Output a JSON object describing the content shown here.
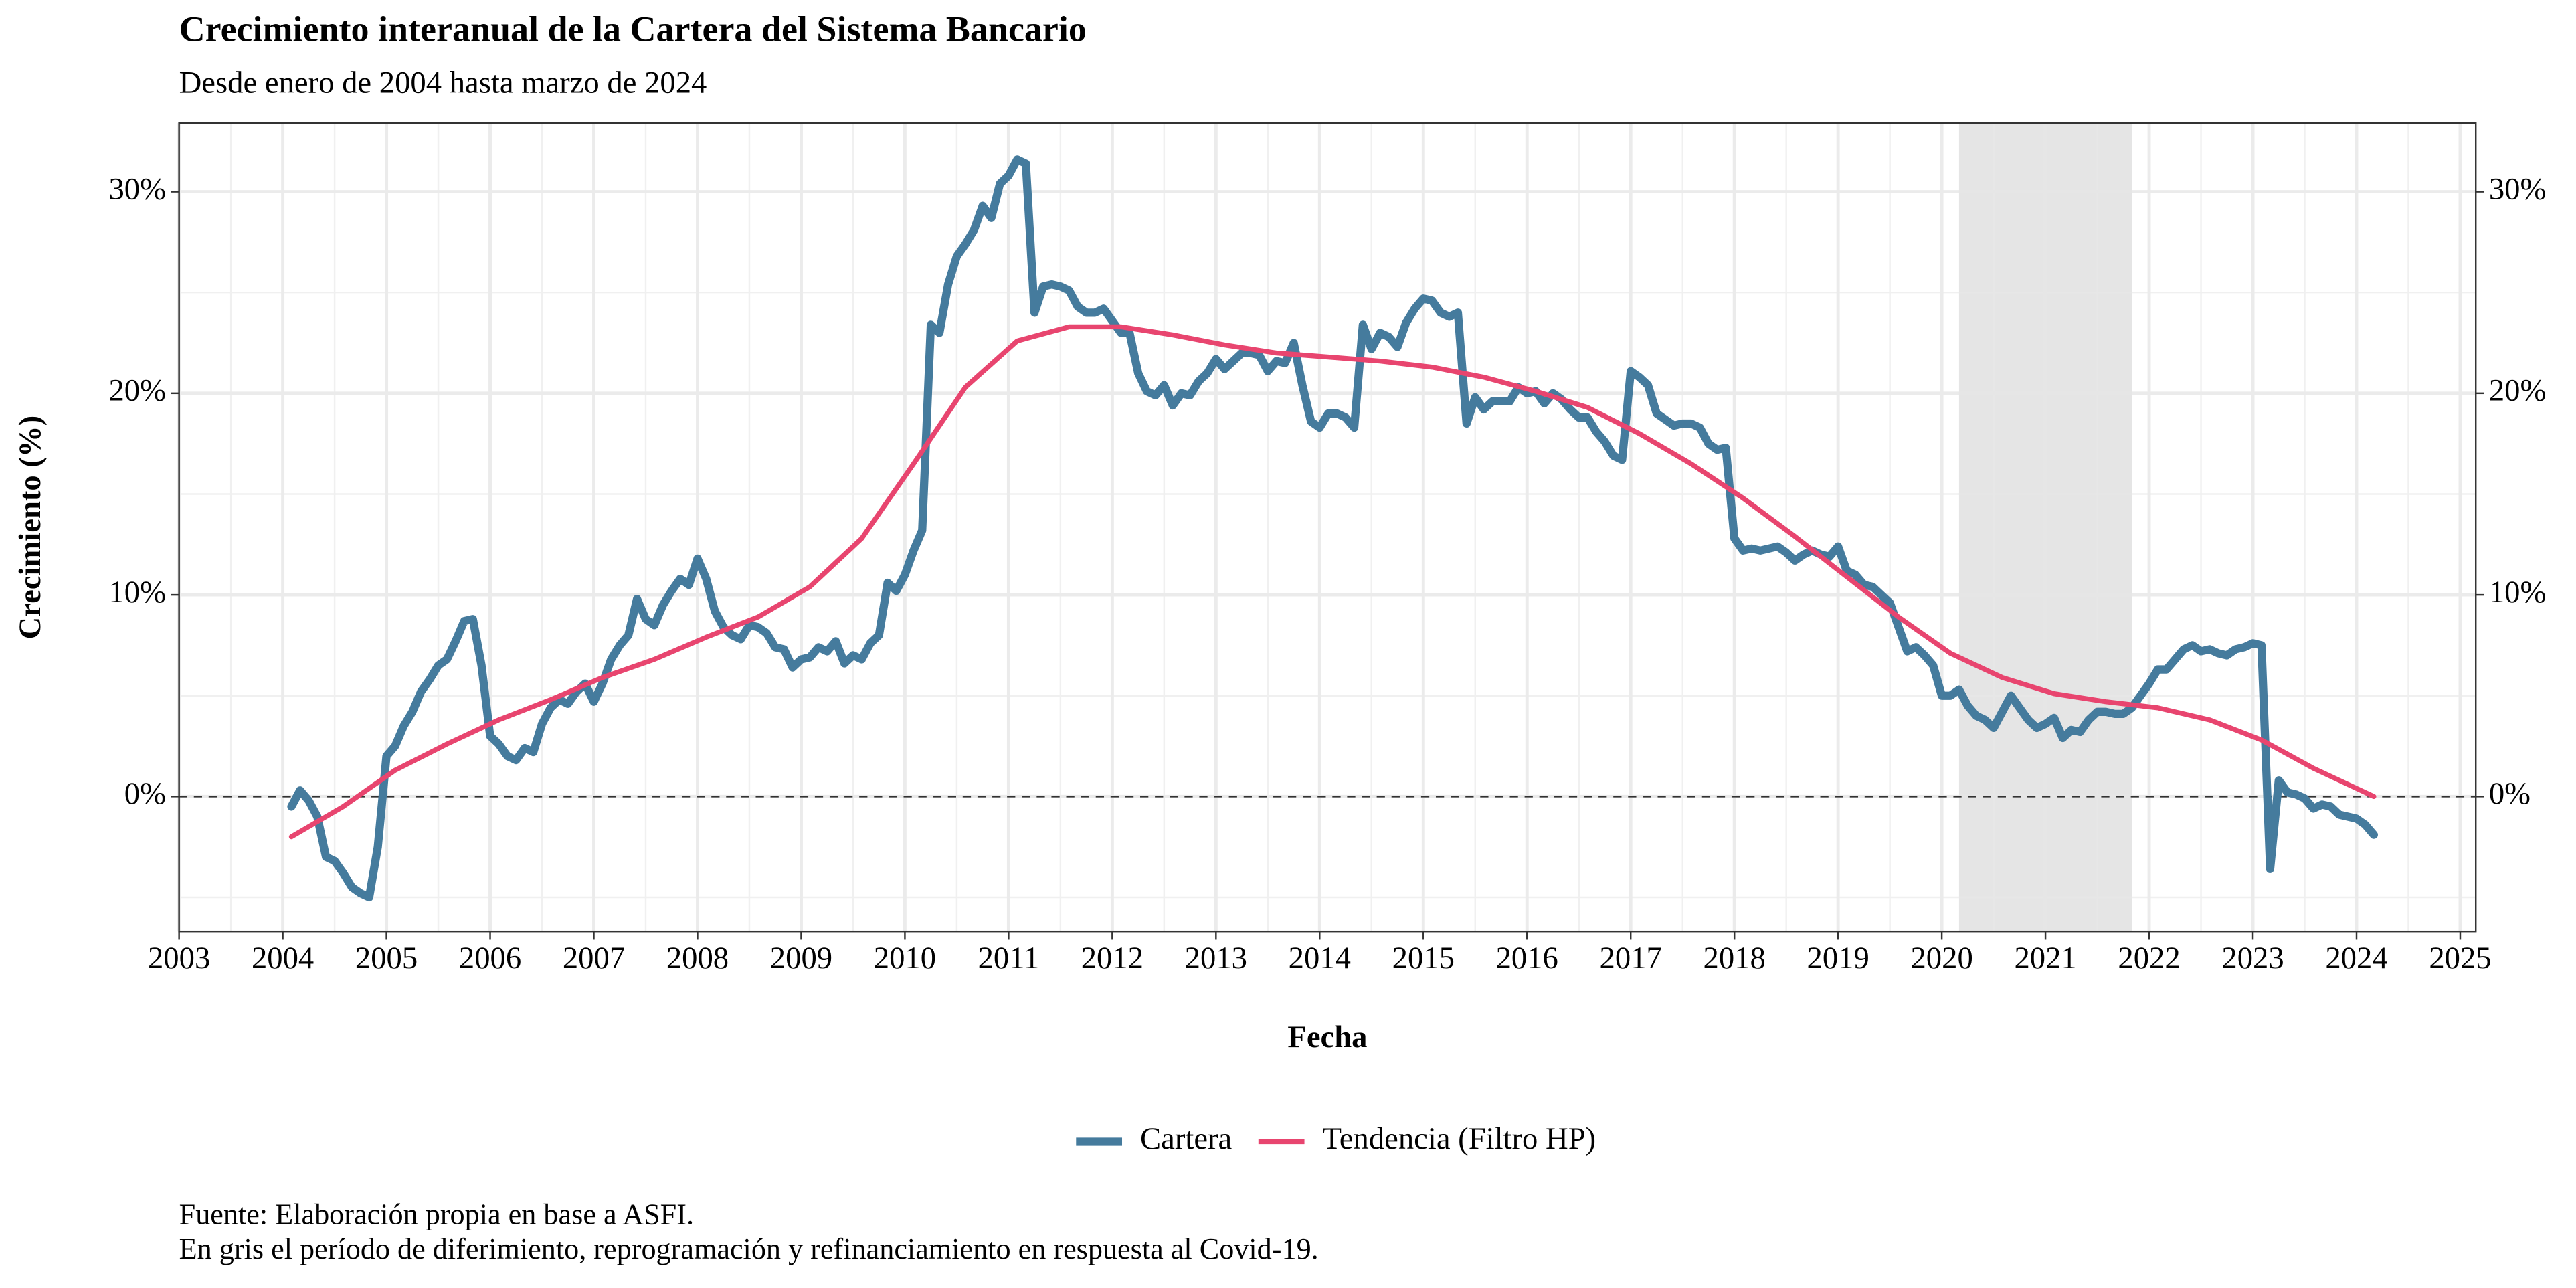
{
  "chart_data": {
    "type": "line",
    "title": "Crecimiento interanual de la Cartera del Sistema Bancario",
    "subtitle": "Desde enero de 2004 hasta marzo de 2024",
    "xlabel": "Fecha",
    "ylabel": "Crecimiento (%)",
    "notes": [
      "Fuente: Elaboración propia en base a ASFI.",
      "En gris el período de diferimiento, reprogramación y refinanciamiento en respuesta al Covid-19."
    ],
    "xlim": [
      2003,
      2025.15
    ],
    "xticks": [
      2003,
      2004,
      2005,
      2006,
      2007,
      2008,
      2009,
      2010,
      2011,
      2012,
      2013,
      2014,
      2015,
      2016,
      2017,
      2018,
      2019,
      2020,
      2021,
      2022,
      2023,
      2024,
      2025
    ],
    "ylim": [
      -6.7,
      33.4
    ],
    "yticks": [
      {
        "value": 0,
        "label": "0%"
      },
      {
        "value": 10,
        "label": "10%"
      },
      {
        "value": 20,
        "label": "20%"
      },
      {
        "value": 30,
        "label": "30%"
      }
    ],
    "y_minor_grid": [
      -5,
      5,
      15,
      25
    ],
    "grid": true,
    "secondary_axis": true,
    "reference_line": 0,
    "highlight": {
      "start": "2020-03",
      "end": "2021-11",
      "color": "#e5e5e5"
    },
    "legend": "bottom",
    "x": [
      "2004-02",
      "2004-03",
      "2004-04",
      "2004-05",
      "2004-06",
      "2004-07",
      "2004-08",
      "2004-09",
      "2004-10",
      "2004-11",
      "2004-12",
      "2005-01",
      "2005-02",
      "2005-03",
      "2005-04",
      "2005-05",
      "2005-06",
      "2005-07",
      "2005-08",
      "2005-09",
      "2005-10",
      "2005-11",
      "2005-12",
      "2006-01",
      "2006-02",
      "2006-03",
      "2006-04",
      "2006-05",
      "2006-06",
      "2006-07",
      "2006-08",
      "2006-09",
      "2006-10",
      "2006-11",
      "2006-12",
      "2007-01",
      "2007-02",
      "2007-03",
      "2007-04",
      "2007-05",
      "2007-06",
      "2007-07",
      "2007-08",
      "2007-09",
      "2007-10",
      "2007-11",
      "2007-12",
      "2008-01",
      "2008-02",
      "2008-03",
      "2008-04",
      "2008-05",
      "2008-06",
      "2008-07",
      "2008-08",
      "2008-09",
      "2008-10",
      "2008-11",
      "2008-12",
      "2009-01",
      "2009-02",
      "2009-03",
      "2009-04",
      "2009-05",
      "2009-06",
      "2009-07",
      "2009-08",
      "2009-09",
      "2009-10",
      "2009-11",
      "2009-12",
      "2010-01",
      "2010-02",
      "2010-03",
      "2010-04",
      "2010-05",
      "2010-06",
      "2010-07",
      "2010-08",
      "2010-09",
      "2010-10",
      "2010-11",
      "2010-12",
      "2011-01",
      "2011-02",
      "2011-03",
      "2011-04",
      "2011-05",
      "2011-06",
      "2011-07",
      "2011-08",
      "2011-09",
      "2011-10",
      "2011-11",
      "2011-12",
      "2012-01",
      "2012-02",
      "2012-03",
      "2012-04",
      "2012-05",
      "2012-06",
      "2012-07",
      "2012-08",
      "2012-09",
      "2012-10",
      "2012-11",
      "2012-12",
      "2013-01",
      "2013-02",
      "2013-03",
      "2013-04",
      "2013-05",
      "2013-06",
      "2013-07",
      "2013-08",
      "2013-09",
      "2013-10",
      "2013-11",
      "2013-12",
      "2014-01",
      "2014-02",
      "2014-03",
      "2014-04",
      "2014-05",
      "2014-06",
      "2014-07",
      "2014-08",
      "2014-09",
      "2014-10",
      "2014-11",
      "2014-12",
      "2015-01",
      "2015-02",
      "2015-03",
      "2015-04",
      "2015-05",
      "2015-06",
      "2015-07",
      "2015-08",
      "2015-09",
      "2015-10",
      "2015-11",
      "2015-12",
      "2016-01",
      "2016-02",
      "2016-03",
      "2016-04",
      "2016-05",
      "2016-06",
      "2016-07",
      "2016-08",
      "2016-09",
      "2016-10",
      "2016-11",
      "2016-12",
      "2017-01",
      "2017-02",
      "2017-03",
      "2017-04",
      "2017-05",
      "2017-06",
      "2017-07",
      "2017-08",
      "2017-09",
      "2017-10",
      "2017-11",
      "2017-12",
      "2018-01",
      "2018-02",
      "2018-03",
      "2018-04",
      "2018-05",
      "2018-06",
      "2018-07",
      "2018-08",
      "2018-09",
      "2018-10",
      "2018-11",
      "2018-12",
      "2019-01",
      "2019-02",
      "2019-03",
      "2019-04",
      "2019-05",
      "2019-06",
      "2019-07",
      "2019-08",
      "2019-09",
      "2019-10",
      "2019-11",
      "2019-12",
      "2020-01",
      "2020-02",
      "2020-03",
      "2020-04",
      "2020-05",
      "2020-06",
      "2020-07",
      "2020-08",
      "2020-09",
      "2020-10",
      "2020-11",
      "2020-12",
      "2021-01",
      "2021-02",
      "2021-03",
      "2021-04",
      "2021-05",
      "2021-06",
      "2021-07",
      "2021-08",
      "2021-09",
      "2021-10",
      "2021-11",
      "2021-12",
      "2022-01",
      "2022-02",
      "2022-03",
      "2022-04",
      "2022-05",
      "2022-06",
      "2022-07",
      "2022-08",
      "2022-09",
      "2022-10",
      "2022-11",
      "2022-12",
      "2023-01",
      "2023-02",
      "2023-03",
      "2023-04",
      "2023-05",
      "2023-06",
      "2023-07",
      "2023-08",
      "2023-09",
      "2023-10",
      "2023-11",
      "2023-12",
      "2024-01",
      "2024-02",
      "2024-03"
    ],
    "series": [
      {
        "name": "Cartera",
        "color": "#457b9d",
        "width": 5,
        "values": [
          -0.5,
          0.3,
          -0.2,
          -1,
          -3,
          -3.2,
          -3.8,
          -4.5,
          -4.8,
          -5,
          -2.5,
          2,
          2.5,
          3.5,
          4.2,
          5.2,
          5.8,
          6.5,
          6.8,
          7.7,
          8.7,
          8.8,
          6.5,
          3,
          2.6,
          2,
          1.8,
          2.4,
          2.2,
          3.6,
          4.4,
          4.8,
          4.6,
          5.2,
          5.6,
          4.7,
          5.6,
          6.8,
          7.5,
          8,
          9.8,
          8.8,
          8.5,
          9.5,
          10.2,
          10.8,
          10.5,
          11.8,
          10.8,
          9.2,
          8.4,
          8,
          7.8,
          8.5,
          8.4,
          8.1,
          7.4,
          7.3,
          6.4,
          6.8,
          6.9,
          7.4,
          7.2,
          7.7,
          6.6,
          7,
          6.8,
          7.6,
          8,
          10.6,
          10.2,
          11,
          12.2,
          13.2,
          23.4,
          23,
          25.4,
          26.8,
          27.4,
          28.1,
          29.3,
          28.7,
          30.4,
          30.8,
          31.6,
          31.4,
          24,
          25.3,
          25.4,
          25.3,
          25.1,
          24.3,
          24,
          24,
          24.2,
          23.6,
          23,
          23,
          21,
          20.1,
          19.9,
          20.4,
          19.4,
          20,
          19.9,
          20.6,
          21,
          21.7,
          21.2,
          21.6,
          22,
          22,
          21.9,
          21.1,
          21.6,
          21.5,
          22.5,
          20.4,
          18.6,
          18.3,
          19,
          19,
          18.8,
          18.3,
          23.4,
          22.2,
          23,
          22.8,
          22.3,
          23.5,
          24.2,
          24.7,
          24.6,
          24,
          23.8,
          24,
          18.5,
          19.8,
          19.2,
          19.6,
          19.6,
          19.6,
          20.3,
          20,
          20.1,
          19.5,
          20,
          19.7,
          19.2,
          18.8,
          18.8,
          18.1,
          17.6,
          16.9,
          16.7,
          21.1,
          20.8,
          20.4,
          19,
          18.7,
          18.4,
          18.5,
          18.5,
          18.3,
          17.5,
          17.2,
          17.3,
          12.8,
          12.2,
          12.3,
          12.2,
          12.3,
          12.4,
          12.1,
          11.7,
          12,
          12.2,
          12,
          11.9,
          12.4,
          11.2,
          11,
          10.5,
          10.4,
          10,
          9.6,
          8.4,
          7.2,
          7.4,
          7,
          6.5,
          5,
          5,
          5.3,
          4.5,
          4,
          3.8,
          3.4,
          4.2,
          5,
          4.4,
          3.8,
          3.4,
          3.6,
          3.9,
          2.9,
          3.3,
          3.2,
          3.8,
          4.2,
          4.2,
          4.1,
          4.1,
          4.4,
          5,
          5.6,
          6.3,
          6.3,
          6.8,
          7.3,
          7.5,
          7.2,
          7.3,
          7.1,
          7,
          7.3,
          7.4,
          7.6,
          7.5,
          -3.6,
          0.8,
          0.2,
          0.1,
          -0.1,
          -0.6,
          -0.4,
          -0.5,
          -0.9,
          -1,
          -1.1,
          -1.4,
          -1.9
        ]
      },
      {
        "name": "Tendencia (Filtro HP)",
        "color": "#e8456f",
        "width": 3,
        "x": [
          "2004-02",
          "2004-08",
          "2005-02",
          "2005-08",
          "2006-02",
          "2006-08",
          "2007-02",
          "2007-08",
          "2008-02",
          "2008-08",
          "2009-02",
          "2009-08",
          "2010-02",
          "2010-08",
          "2011-02",
          "2011-08",
          "2012-02",
          "2012-08",
          "2013-02",
          "2013-08",
          "2014-02",
          "2014-08",
          "2015-02",
          "2015-08",
          "2016-02",
          "2016-08",
          "2017-02",
          "2017-08",
          "2018-02",
          "2018-08",
          "2019-02",
          "2019-08",
          "2020-02",
          "2020-08",
          "2021-02",
          "2021-08",
          "2022-02",
          "2022-08",
          "2023-02",
          "2023-08",
          "2024-02",
          "2024-03"
        ],
        "values": [
          -2,
          -0.5,
          1.3,
          2.6,
          3.8,
          4.8,
          5.9,
          6.8,
          7.9,
          8.9,
          10.4,
          12.8,
          16.5,
          20.3,
          22.6,
          23.3,
          23.3,
          22.9,
          22.4,
          22,
          21.8,
          21.6,
          21.3,
          20.8,
          20.1,
          19.3,
          18,
          16.5,
          14.8,
          12.9,
          10.9,
          8.9,
          7.1,
          5.9,
          5.1,
          4.7,
          4.4,
          3.8,
          2.8,
          1.4,
          0.2,
          0
        ]
      }
    ]
  }
}
